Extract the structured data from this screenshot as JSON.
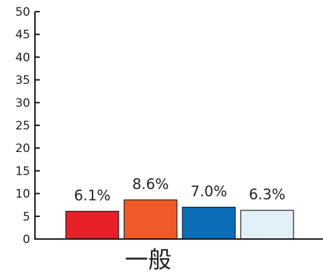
{
  "chart_data": {
    "type": "bar",
    "categories": [
      "一般"
    ],
    "series": [
      {
        "values": [
          6.1
        ],
        "label": "6.1%",
        "color": "#e8202a"
      },
      {
        "values": [
          8.6
        ],
        "label": "8.6%",
        "color": "#f05a28"
      },
      {
        "values": [
          7.0
        ],
        "label": "7.0%",
        "color": "#0b6db7"
      },
      {
        "values": [
          6.3
        ],
        "label": "6.3%",
        "color": "#e3f0f7"
      }
    ],
    "ylim": [
      0,
      50
    ],
    "yticks": [
      "0",
      "5",
      "10",
      "15",
      "20",
      "25",
      "30",
      "35",
      "40",
      "45",
      "50"
    ],
    "grid": false,
    "title": "",
    "xlabel": "",
    "ylabel": ""
  }
}
